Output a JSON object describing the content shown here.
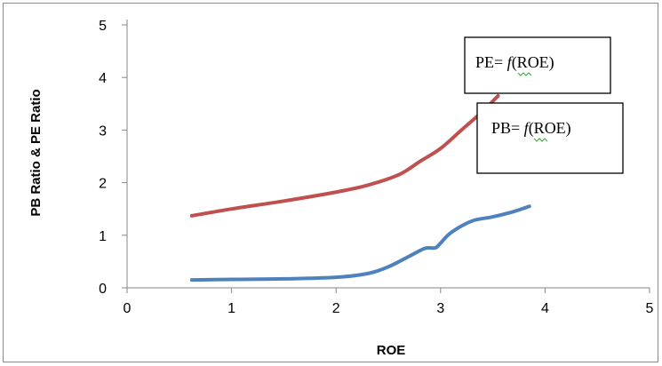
{
  "chart_data": {
    "type": "line",
    "title": "",
    "xlabel": "ROE",
    "ylabel": "PB Ratio  &  PE Ratio",
    "xlim": [
      0,
      5
    ],
    "ylim": [
      0,
      5
    ],
    "x_ticks": [
      "0",
      "1",
      "2",
      "3",
      "4",
      "5"
    ],
    "y_ticks": [
      "0",
      "1",
      "2",
      "3",
      "4",
      "5"
    ],
    "grid": false,
    "legend": "none",
    "series": [
      {
        "color": "#c0504d",
        "x": [
          0.62,
          1.0,
          1.5,
          2.0,
          2.3,
          2.6,
          2.8,
          3.0,
          3.2,
          3.4,
          3.55
        ],
        "y": [
          1.37,
          1.5,
          1.65,
          1.82,
          1.95,
          2.15,
          2.4,
          2.65,
          3.0,
          3.35,
          3.65
        ]
      },
      {
        "color": "#4f81bd",
        "x": [
          0.62,
          1.0,
          1.5,
          2.0,
          2.3,
          2.5,
          2.7,
          2.85,
          2.95,
          3.0,
          3.1,
          3.3,
          3.5,
          3.7,
          3.85
        ],
        "y": [
          0.15,
          0.16,
          0.17,
          0.2,
          0.27,
          0.4,
          0.6,
          0.75,
          0.76,
          0.85,
          1.05,
          1.27,
          1.35,
          1.45,
          1.55
        ]
      }
    ],
    "annotations": [
      {
        "text_prefix": "PE= ",
        "func": "f",
        "text_suffix": "(ROE)"
      },
      {
        "text_prefix": "PB= ",
        "func": "f",
        "text_suffix": "(ROE)"
      }
    ]
  }
}
